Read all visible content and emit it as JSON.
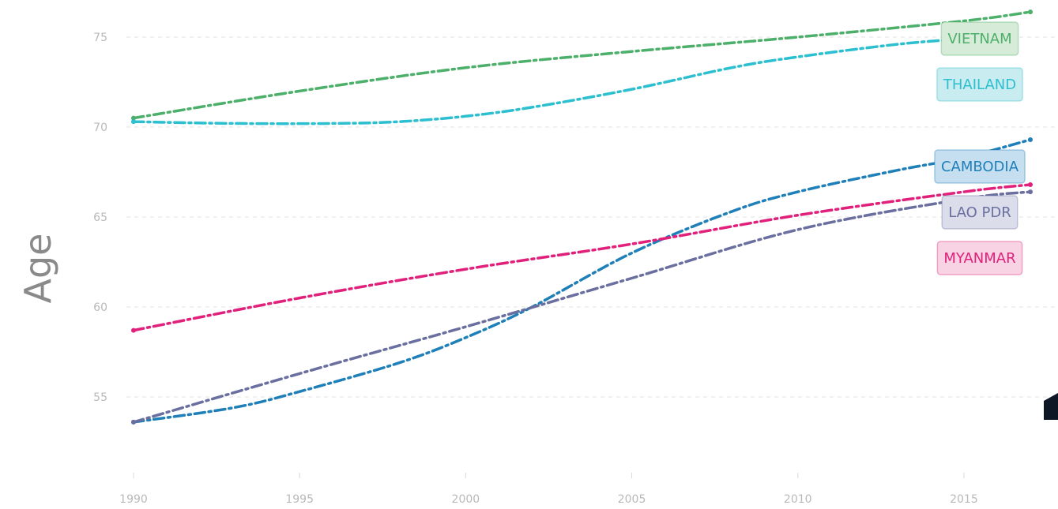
{
  "chart_data": {
    "type": "line",
    "ylabel": "Age",
    "xlim": [
      1990,
      2017
    ],
    "ylim": [
      50,
      76.5
    ],
    "x_ticks": [
      1990,
      1995,
      2000,
      2005,
      2010,
      2015
    ],
    "y_ticks": [
      55,
      60,
      65,
      70,
      75
    ],
    "grid": "horizontal dashed",
    "line_style": "dash-dot",
    "legend": "direct labels at right end",
    "series": [
      {
        "name": "VIETNAM",
        "color": "#4caf6a",
        "label_bg": "#d7ecd8",
        "x": [
          1990,
          1995,
          2000,
          2005,
          2010,
          2015,
          2017
        ],
        "y": [
          70.5,
          72.0,
          73.3,
          74.2,
          75.0,
          75.9,
          76.4
        ]
      },
      {
        "name": "THAILAND",
        "color": "#2bbfcf",
        "label_bg": "#c8ecef",
        "x": [
          1990,
          1993,
          1996,
          1998,
          2000,
          2002,
          2005,
          2008,
          2010,
          2013,
          2015
        ],
        "y": [
          70.3,
          70.2,
          70.2,
          70.3,
          70.6,
          71.1,
          72.1,
          73.3,
          73.9,
          74.6,
          74.9
        ]
      },
      {
        "name": "CAMBODIA",
        "color": "#1f7fb8",
        "label_bg": "#c5def0",
        "x": [
          1990,
          1993,
          1995,
          1998,
          2000,
          2002,
          2005,
          2008,
          2010,
          2013,
          2015,
          2017
        ],
        "y": [
          53.6,
          54.4,
          55.3,
          56.9,
          58.3,
          60.0,
          63.0,
          65.3,
          66.4,
          67.6,
          68.3,
          69.3
        ]
      },
      {
        "name": "LAO PDR",
        "color": "#6a6f9f",
        "label_bg": "#dcddea",
        "x": [
          1990,
          1995,
          2000,
          2005,
          2010,
          2015,
          2017
        ],
        "y": [
          53.6,
          56.3,
          58.9,
          61.6,
          64.3,
          66.0,
          66.4
        ]
      },
      {
        "name": "MYANMAR",
        "color": "#e0207a",
        "label_bg": "#f8d3e3",
        "x": [
          1990,
          1995,
          2000,
          2005,
          2010,
          2015,
          2017
        ],
        "y": [
          58.7,
          60.5,
          62.1,
          63.5,
          65.1,
          66.4,
          66.8
        ]
      }
    ]
  }
}
